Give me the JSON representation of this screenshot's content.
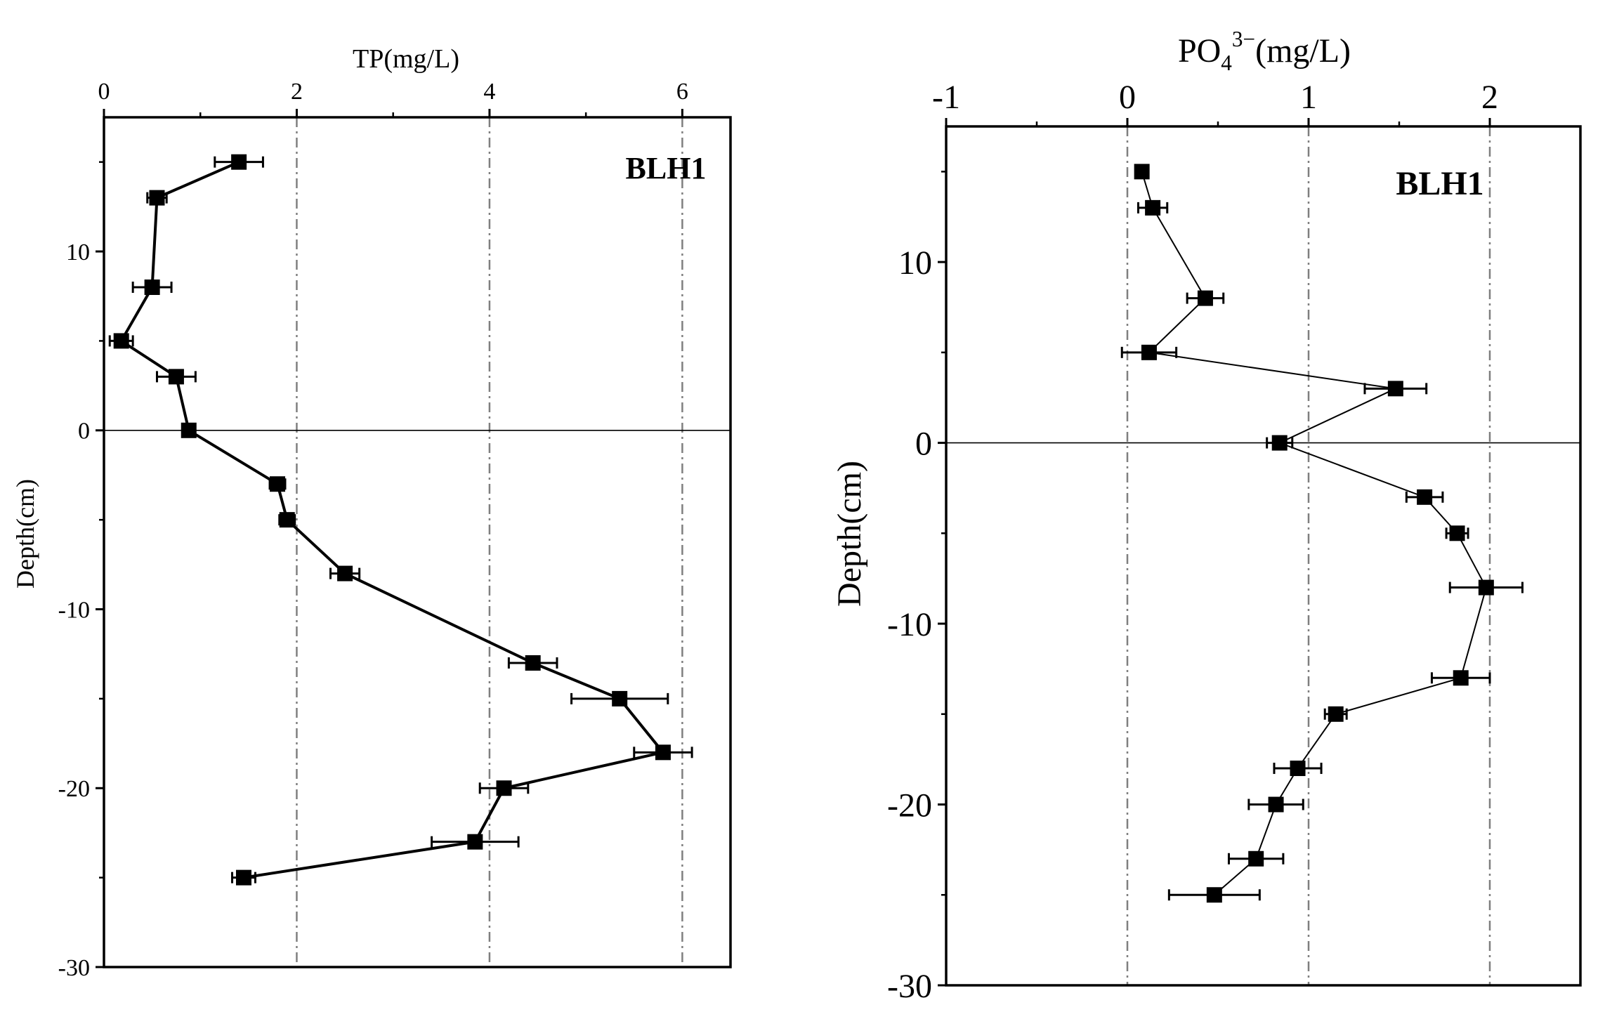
{
  "chart_data": [
    {
      "type": "line",
      "title": "",
      "panel_label": "BLH1",
      "xlabel": "TP(mg/L)",
      "ylabel": "Depth(cm)",
      "x_axis_position": "top",
      "xlim": [
        0,
        6.5
      ],
      "ylim": [
        -30,
        17.5
      ],
      "xticks": [
        0,
        2,
        4,
        6
      ],
      "yticks": [
        10,
        0,
        -10,
        -20,
        -30
      ],
      "gridlines_x": [
        2,
        4,
        6
      ],
      "zero_line_y": 0,
      "series": [
        {
          "name": "BLH1",
          "points": [
            {
              "depth": 15,
              "x": 1.4,
              "err": 0.25
            },
            {
              "depth": 13,
              "x": 0.55,
              "err": 0.1
            },
            {
              "depth": 8,
              "x": 0.5,
              "err": 0.2
            },
            {
              "depth": 5,
              "x": 0.18,
              "err": 0.12
            },
            {
              "depth": 3,
              "x": 0.75,
              "err": 0.2
            },
            {
              "depth": 0,
              "x": 0.88,
              "err": 0.06
            },
            {
              "depth": -3,
              "x": 1.8,
              "err": 0.08
            },
            {
              "depth": -5,
              "x": 1.9,
              "err": 0.08
            },
            {
              "depth": -8,
              "x": 2.5,
              "err": 0.15
            },
            {
              "depth": -13,
              "x": 4.45,
              "err": 0.25
            },
            {
              "depth": -15,
              "x": 5.35,
              "err": 0.5
            },
            {
              "depth": -18,
              "x": 5.8,
              "err": 0.3
            },
            {
              "depth": -20,
              "x": 4.15,
              "err": 0.25
            },
            {
              "depth": -23,
              "x": 3.85,
              "err": 0.45
            },
            {
              "depth": -25,
              "x": 1.45,
              "err": 0.12
            }
          ]
        }
      ]
    },
    {
      "type": "line",
      "title": "",
      "panel_label": "BLH1",
      "xlabel_main": "PO",
      "xlabel_sub": "4",
      "xlabel_sup": "3−",
      "xlabel_unit": "(mg/L)",
      "ylabel": "Depth(cm)",
      "x_axis_position": "top",
      "xlim": [
        -1,
        2.5
      ],
      "ylim": [
        -30,
        17.5
      ],
      "xticks": [
        -1,
        0,
        1,
        2
      ],
      "yticks": [
        10,
        0,
        -10,
        -20,
        -30
      ],
      "gridlines_x": [
        0,
        1,
        2
      ],
      "zero_line_y": 0,
      "series": [
        {
          "name": "BLH1",
          "points": [
            {
              "depth": 15,
              "x": 0.08,
              "err": 0.0
            },
            {
              "depth": 13,
              "x": 0.14,
              "err": 0.08
            },
            {
              "depth": 8,
              "x": 0.43,
              "err": 0.1
            },
            {
              "depth": 5,
              "x": 0.12,
              "err": 0.15
            },
            {
              "depth": 3,
              "x": 1.48,
              "err": 0.17
            },
            {
              "depth": 0,
              "x": 0.84,
              "err": 0.07
            },
            {
              "depth": -3,
              "x": 1.64,
              "err": 0.1
            },
            {
              "depth": -5,
              "x": 1.82,
              "err": 0.06
            },
            {
              "depth": -8,
              "x": 1.98,
              "err": 0.2
            },
            {
              "depth": -13,
              "x": 1.84,
              "err": 0.16
            },
            {
              "depth": -15,
              "x": 1.15,
              "err": 0.06
            },
            {
              "depth": -18,
              "x": 0.94,
              "err": 0.13
            },
            {
              "depth": -20,
              "x": 0.82,
              "err": 0.15
            },
            {
              "depth": -23,
              "x": 0.71,
              "err": 0.15
            },
            {
              "depth": -25,
              "x": 0.48,
              "err": 0.25
            }
          ]
        }
      ]
    }
  ]
}
